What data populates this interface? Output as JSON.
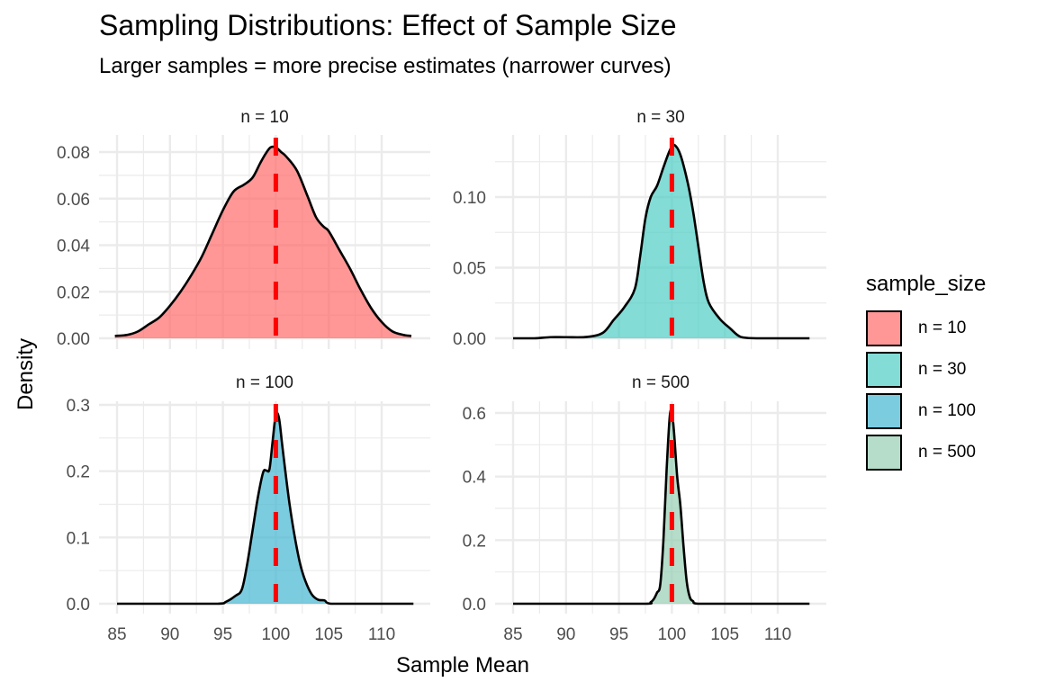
{
  "chart_data": {
    "type": "area",
    "title": "Sampling Distributions: Effect of Sample Size",
    "subtitle": "Larger samples = more precise estimates (narrower curves)",
    "xlabel": "Sample Mean",
    "ylabel": "Density",
    "x_ticks": [
      85,
      90,
      95,
      100,
      105,
      110
    ],
    "xlim": [
      84,
      114
    ],
    "reference_line": {
      "x": 100,
      "color": "#FF0000",
      "style": "dashed"
    },
    "grid": true,
    "legend": {
      "title": "sample_size",
      "placement": "right",
      "entries": [
        {
          "label": "n = 10",
          "color": "#FF6B6B"
        },
        {
          "label": "n = 30",
          "color": "#4ECDC4"
        },
        {
          "label": "n = 100",
          "color": "#45B7D1"
        },
        {
          "label": "n = 500",
          "color": "#96CEB4"
        }
      ]
    },
    "panels": [
      {
        "label": "n = 10",
        "color": "#FF6B6B",
        "fill_opacity": 0.7,
        "ylim": [
          0,
          0.086
        ],
        "y_ticks": [
          0.0,
          0.02,
          0.04,
          0.06,
          0.08
        ],
        "y_tick_labels": [
          "0.00",
          "0.02",
          "0.04",
          "0.06",
          "0.08"
        ],
        "x": [
          84.8,
          86,
          87,
          88,
          89,
          90,
          91,
          92,
          93,
          94,
          95,
          96,
          97,
          97.8,
          98.5,
          99,
          99.5,
          100,
          100.5,
          101,
          102,
          103,
          103.8,
          104.5,
          105,
          106,
          107,
          108,
          109,
          110,
          111,
          112,
          112.8
        ],
        "density": [
          0.001,
          0.0015,
          0.003,
          0.006,
          0.009,
          0.014,
          0.02,
          0.027,
          0.035,
          0.045,
          0.055,
          0.063,
          0.066,
          0.069,
          0.075,
          0.079,
          0.082,
          0.082,
          0.08,
          0.078,
          0.072,
          0.061,
          0.052,
          0.048,
          0.046,
          0.038,
          0.03,
          0.021,
          0.013,
          0.007,
          0.003,
          0.0015,
          0.001
        ]
      },
      {
        "label": "n = 30",
        "color": "#4ECDC4",
        "fill_opacity": 0.7,
        "ylim": [
          0,
          0.144
        ],
        "y_ticks": [
          0.0,
          0.05,
          0.1
        ],
        "y_tick_labels": [
          "0.00",
          "0.05",
          "0.10"
        ],
        "x": [
          85,
          87,
          88.5,
          90,
          92,
          93.5,
          94.5,
          95.5,
          96.5,
          97,
          97.5,
          98,
          98.6,
          99.2,
          99.8,
          100.2,
          100.8,
          101.5,
          102,
          102.5,
          103,
          103.5,
          104.5,
          105.5,
          106.5,
          108,
          110,
          113
        ],
        "density": [
          0.0,
          0.0,
          0.0008,
          0.0008,
          0.001,
          0.004,
          0.013,
          0.022,
          0.035,
          0.058,
          0.085,
          0.1,
          0.108,
          0.121,
          0.133,
          0.137,
          0.13,
          0.11,
          0.09,
          0.065,
          0.04,
          0.025,
          0.014,
          0.007,
          0.001,
          0.0,
          0.0,
          0.0
        ]
      },
      {
        "label": "n = 100",
        "color": "#45B7D1",
        "fill_opacity": 0.7,
        "ylim": [
          0,
          0.31
        ],
        "y_ticks": [
          0.0,
          0.1,
          0.2,
          0.3
        ],
        "y_tick_labels": [
          "0.0",
          "0.1",
          "0.2",
          "0.3"
        ],
        "x": [
          85,
          90,
          94.5,
          95.3,
          96.2,
          96.8,
          97.3,
          97.8,
          98.3,
          98.8,
          99.1,
          99.4,
          99.7,
          100.0,
          100.3,
          100.6,
          100.9,
          101.3,
          101.8,
          102.3,
          102.8,
          103.4,
          104.0,
          104.6,
          105.2,
          108,
          113
        ],
        "density": [
          0.0,
          0.0,
          0.0,
          0.003,
          0.012,
          0.022,
          0.06,
          0.11,
          0.16,
          0.198,
          0.201,
          0.203,
          0.245,
          0.285,
          0.28,
          0.24,
          0.2,
          0.15,
          0.1,
          0.06,
          0.034,
          0.014,
          0.006,
          0.005,
          0.0,
          0.0,
          0.0
        ]
      },
      {
        "label": "n = 500",
        "color": "#96CEB4",
        "fill_opacity": 0.7,
        "ylim": [
          0,
          0.63
        ],
        "y_ticks": [
          0.0,
          0.2,
          0.4,
          0.6
        ],
        "y_tick_labels": [
          "0.0",
          "0.2",
          "0.4",
          "0.6"
        ],
        "x": [
          85,
          92,
          97.5,
          98.0,
          98.3,
          98.6,
          98.9,
          99.2,
          99.5,
          99.8,
          100.0,
          100.2,
          100.5,
          100.8,
          101.1,
          101.4,
          101.7,
          102.0,
          102.5,
          106,
          113
        ],
        "density": [
          0.0,
          0.0,
          0.0,
          0.005,
          0.015,
          0.035,
          0.06,
          0.2,
          0.42,
          0.59,
          0.6,
          0.54,
          0.4,
          0.31,
          0.18,
          0.07,
          0.02,
          0.008,
          0.0,
          0.0,
          0.0
        ]
      }
    ]
  }
}
